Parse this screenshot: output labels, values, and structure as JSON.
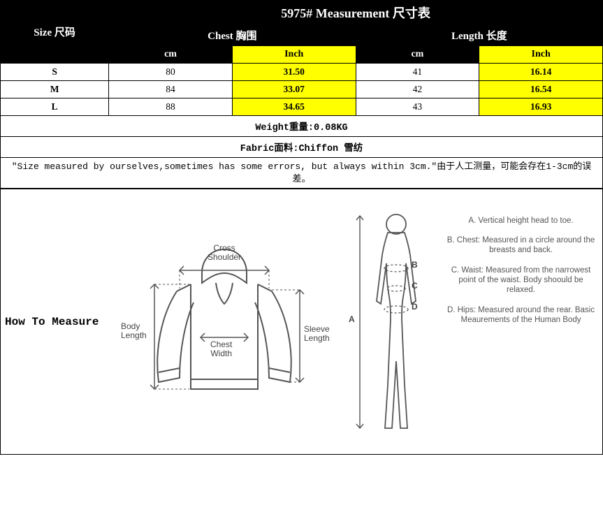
{
  "title": "5975# Measurement 尺寸表",
  "size_header": "Size 尺码",
  "groups": [
    {
      "label": "Chest 胸围",
      "units": [
        "cm",
        "Inch"
      ]
    },
    {
      "label": "Length 长度",
      "units": [
        "cm",
        "Inch"
      ]
    }
  ],
  "rows": [
    {
      "size": "S",
      "chest_cm": "80",
      "chest_in": "31.50",
      "len_cm": "41",
      "len_in": "16.14"
    },
    {
      "size": "M",
      "chest_cm": "84",
      "chest_in": "33.07",
      "len_cm": "42",
      "len_in": "16.54"
    },
    {
      "size": "L",
      "chest_cm": "88",
      "chest_in": "34.65",
      "len_cm": "43",
      "len_in": "16.93"
    }
  ],
  "weight_line": "Weight重量:0.08KG",
  "fabric_line": "Fabric面料:Chiffon 雪纺",
  "disclaimer": "\"Size measured by ourselves,sometimes has some errors, but always within 3cm.\"由于人工测量，可能会存在1-3cm的误差。",
  "howto_label": "How To Measure",
  "shirt_labels": {
    "cross_shoulder": "Cross\nShoulder",
    "body_length": "Body\nLength",
    "chest_width": "Chest\nWidth",
    "sleeve_length": "Sleeve\nLength"
  },
  "body_letters": {
    "a": "A",
    "b": "B",
    "c": "C",
    "d": "D"
  },
  "body_notes": {
    "a": "A. Vertical height head to toe.",
    "b": "B. Chest: Measured in a circle around the breasts and back.",
    "c": "C. Waist: Measured from the narrowest point of the waist. Body shoould be relaxed.",
    "d": "D. Hips: Measured around the rear. Basic Meaurements of the Human Body"
  },
  "colors": {
    "black": "#000000",
    "white": "#ffffff",
    "yellow": "#ffff00",
    "diagram_stroke": "#555555"
  },
  "table_style": {
    "col_widths_pct": [
      18,
      20.5,
      20.5,
      20.5,
      20.5
    ],
    "title_fontsize": 18,
    "header2_fontsize": 15,
    "unit_fontsize": 14,
    "data_fontsize": 13.5,
    "info_fontsize": 13.5,
    "disclaimer_fontsize": 13
  }
}
